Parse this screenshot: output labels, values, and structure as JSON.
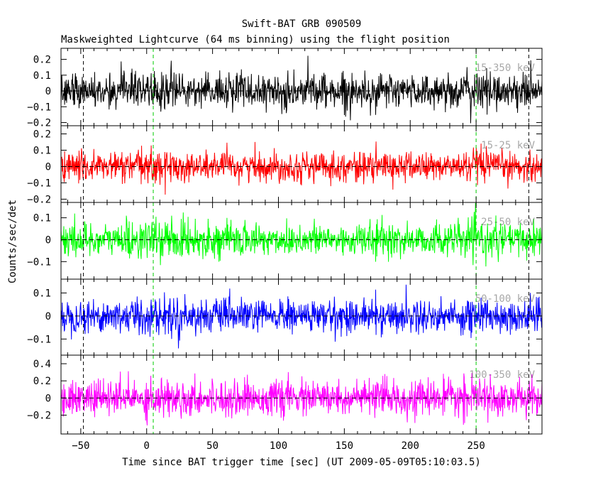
{
  "title": "Swift-BAT GRB 090509",
  "subtitle": "Maskweighted Lightcurve (64 ms binning) using the flight position",
  "chart_data": {
    "type": "line",
    "title": "Swift-BAT GRB 090509",
    "subtitle": "Maskweighted Lightcurve (64 ms binning) using the flight position",
    "xlabel": "Time since BAT trigger time [sec] (UT 2009-05-09T05:10:03.5)",
    "ylabel": "Counts/sec/det",
    "xlim": [
      -65,
      300
    ],
    "x_ticks": [
      -50,
      0,
      50,
      100,
      150,
      200,
      250
    ],
    "x_minor_step": 10,
    "bin_sec": 0.064,
    "vlines": {
      "dashed_black": [
        -48,
        290
      ],
      "dashed_green": [
        5,
        250
      ]
    },
    "panels": [
      {
        "name": "15-350 keV",
        "label": "15-350 keV",
        "color": "#000000",
        "ylim": [
          -0.22,
          0.27
        ],
        "yticks": [
          -0.2,
          -0.1,
          0,
          0.1,
          0.2
        ],
        "yticklabels": [
          "-0.2",
          "-0.1",
          "0",
          "0.1",
          "0.2"
        ],
        "noise_sigma": 0.055,
        "baseline": 0
      },
      {
        "name": "15-25 keV",
        "label": "15-25 keV",
        "color": "#ff0000",
        "ylim": [
          -0.22,
          0.25
        ],
        "yticks": [
          -0.2,
          -0.1,
          0,
          0.1,
          0.2
        ],
        "yticklabels": [
          "-0.2",
          "-0.1",
          "0",
          "0.1",
          "0.2"
        ],
        "noise_sigma": 0.045,
        "baseline": 0
      },
      {
        "name": "25-50 keV",
        "label": "25-50 keV",
        "color": "#00ff00",
        "ylim": [
          -0.18,
          0.17
        ],
        "yticks": [
          -0.1,
          0,
          0.1
        ],
        "yticklabels": [
          "-0.1",
          "0",
          "0.1"
        ],
        "noise_sigma": 0.038,
        "baseline": 0
      },
      {
        "name": "50-100 keV",
        "label": "50-100 keV",
        "color": "#0000ff",
        "ylim": [
          -0.17,
          0.16
        ],
        "yticks": [
          -0.1,
          0,
          0.1
        ],
        "yticklabels": [
          "-0.1",
          "0",
          "0.1"
        ],
        "noise_sigma": 0.036,
        "baseline": 0
      },
      {
        "name": "100-350 keV",
        "label": "100-350 keV",
        "color": "#ff00ff",
        "ylim": [
          -0.42,
          0.5
        ],
        "yticks": [
          -0.2,
          0,
          0.2,
          0.4
        ],
        "yticklabels": [
          "-0.2",
          "0",
          "0.2",
          "0.4"
        ],
        "noise_sigma": 0.1,
        "baseline": 0
      }
    ]
  }
}
